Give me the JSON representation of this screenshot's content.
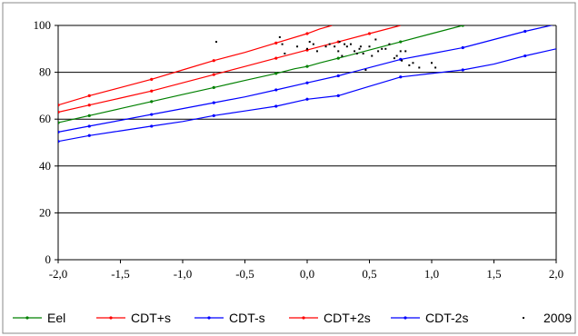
{
  "chart_data": {
    "type": "line",
    "title": "",
    "xlabel": "",
    "ylabel": "",
    "xlim": [
      -2.0,
      2.0
    ],
    "ylim": [
      0,
      100
    ],
    "x_ticks": [
      -2.0,
      -1.5,
      -1.0,
      -0.5,
      0.0,
      0.5,
      1.0,
      1.5,
      2.0
    ],
    "x_tick_labels": [
      "-2,0",
      "-1,5",
      "-1,0",
      "-0,5",
      "0,0",
      "0,5",
      "1,0",
      "1,5",
      "2,0"
    ],
    "y_ticks": [
      0,
      20,
      40,
      60,
      80,
      100
    ],
    "y_tick_labels": [
      "0",
      "20",
      "40",
      "60",
      "80",
      "100"
    ],
    "grid": "horizontal",
    "legend_position": "bottom",
    "series": [
      {
        "name": "Eel",
        "color": "#008000",
        "marker_x": [
          -2.0,
          -1.75,
          -1.25,
          -0.75,
          -0.25,
          0.0,
          0.25,
          0.75,
          1.25
        ],
        "x": [
          -2.0,
          -1.75,
          -1.5,
          -1.25,
          -1.0,
          -0.75,
          -0.5,
          -0.25,
          -0.1,
          0.0,
          0.1,
          0.25,
          0.5,
          0.75,
          1.0,
          1.25
        ],
        "values": [
          58.5,
          61.5,
          64.5,
          67.5,
          70.5,
          73.5,
          76.5,
          79.5,
          81.5,
          82.5,
          84,
          86,
          89.5,
          93,
          96.5,
          100
        ]
      },
      {
        "name": "CDT+s",
        "color": "#ff0000",
        "marker_x": [
          -2.0,
          -1.75,
          -1.25,
          -0.75,
          -0.25,
          0.0,
          0.25,
          0.5
        ],
        "x": [
          -2.0,
          -1.75,
          -1.5,
          -1.25,
          -1.0,
          -0.75,
          -0.5,
          -0.25,
          0.0,
          0.25,
          0.5,
          0.75
        ],
        "values": [
          63,
          66,
          69,
          72,
          75.5,
          79,
          82.5,
          86,
          89.5,
          93,
          96.5,
          100
        ]
      },
      {
        "name": "CDT-s",
        "color": "#0000ff",
        "marker_x": [
          -2.0,
          -1.75,
          -1.25,
          -0.75,
          -0.25,
          0.0,
          0.25,
          0.75,
          1.25,
          1.75
        ],
        "x": [
          -2.0,
          -1.75,
          -1.5,
          -1.25,
          -1.0,
          -0.75,
          -0.5,
          -0.25,
          0.0,
          0.25,
          0.5,
          0.75,
          1.0,
          1.25,
          1.5,
          1.75,
          2.0
        ],
        "values": [
          54.5,
          57,
          59.5,
          62,
          64.5,
          67,
          69.5,
          72.5,
          75.5,
          78.5,
          82,
          85.5,
          88,
          90.5,
          94,
          97.5,
          100.5
        ]
      },
      {
        "name": "CDT+2s",
        "color": "#ff0000",
        "marker_x": [
          -2.0,
          -1.75,
          -1.25,
          -0.75,
          -0.25,
          0.0
        ],
        "x": [
          -2.0,
          -1.75,
          -1.5,
          -1.25,
          -1.0,
          -0.75,
          -0.5,
          -0.25,
          0.0,
          0.1,
          0.2
        ],
        "values": [
          66,
          70,
          73.5,
          77,
          81,
          85,
          88.5,
          92.5,
          96.5,
          98.5,
          100
        ]
      },
      {
        "name": "CDT-2s",
        "color": "#0000ff",
        "marker_x": [
          -2.0,
          -1.75,
          -1.25,
          -0.75,
          -0.25,
          0.0,
          0.25,
          0.75,
          1.25,
          1.75
        ],
        "x": [
          -2.0,
          -1.75,
          -1.5,
          -1.25,
          -1.0,
          -0.75,
          -0.5,
          -0.25,
          0.0,
          0.25,
          0.5,
          0.75,
          1.0,
          1.25,
          1.5,
          1.75,
          2.0
        ],
        "values": [
          50.5,
          53,
          55,
          57,
          59,
          61.5,
          63.5,
          65.5,
          68.5,
          70,
          74,
          78,
          79.5,
          81,
          83.5,
          87,
          90
        ]
      }
    ],
    "scatter": {
      "name": "2009",
      "color": "#000000",
      "x": [
        -0.73,
        -0.22,
        -0.2,
        -0.18,
        -0.08,
        0.0,
        0.02,
        0.05,
        0.08,
        0.15,
        0.18,
        0.22,
        0.25,
        0.26,
        0.28,
        0.3,
        0.32,
        0.35,
        0.38,
        0.4,
        0.42,
        0.43,
        0.45,
        0.47,
        0.5,
        0.52,
        0.55,
        0.57,
        0.6,
        0.63,
        0.66,
        0.7,
        0.72,
        0.75,
        0.76,
        0.79,
        0.82,
        0.85,
        0.9,
        1.0,
        1.03
      ],
      "values": [
        93,
        95,
        92,
        88,
        91,
        90,
        93,
        92,
        89,
        91,
        92,
        91,
        89,
        93,
        87,
        92,
        91,
        92,
        89,
        88,
        90,
        91,
        88,
        81,
        91,
        87,
        94,
        89,
        90,
        90,
        92,
        86,
        87,
        89,
        85,
        89,
        83,
        84,
        82,
        84,
        82
      ]
    }
  }
}
